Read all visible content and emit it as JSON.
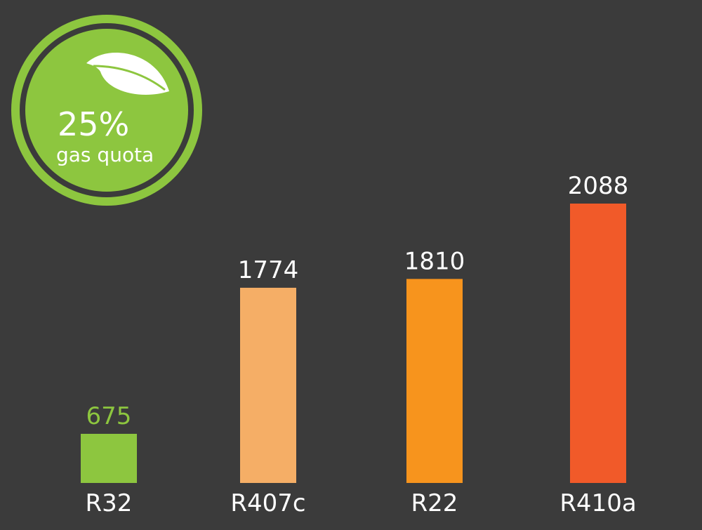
{
  "badge": {
    "percent": "25%",
    "subtitle": "gas quota",
    "icon": "leaf-icon",
    "color": "#8dc63f"
  },
  "chart_data": {
    "type": "bar",
    "categories": [
      "R32",
      "R407c",
      "R22",
      "R410a"
    ],
    "values": [
      675,
      1774,
      1810,
      2088
    ],
    "colors": [
      "#8dc63f",
      "#f5ae66",
      "#f7941d",
      "#f15a29"
    ],
    "value_label_colors": [
      "#8dc63f",
      "#ffffff",
      "#ffffff",
      "#ffffff"
    ],
    "title": "",
    "xlabel": "",
    "ylabel": "",
    "grid": false,
    "background": "#3b3b3b"
  }
}
